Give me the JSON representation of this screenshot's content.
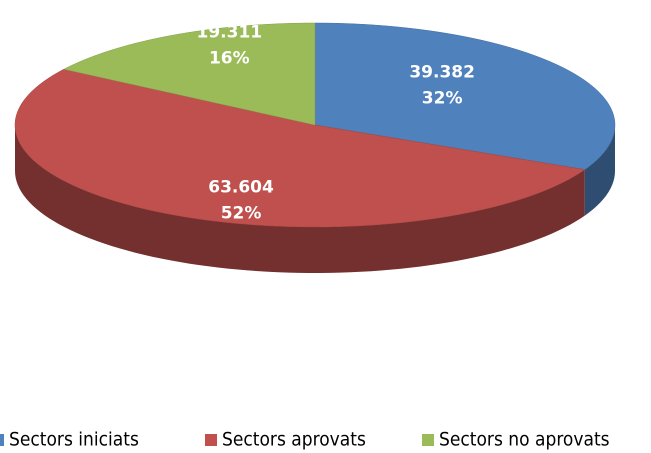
{
  "chart_data": {
    "type": "pie",
    "categories": [
      "Sectors iniciats",
      "Sectors aprovats",
      "Sectors no aprovats"
    ],
    "values": [
      39382,
      63604,
      19311
    ],
    "value_labels": [
      "39.382",
      "63.604",
      "19.311"
    ],
    "percents": [
      32,
      52,
      16
    ],
    "percent_labels": [
      "32%",
      "52%",
      "16%"
    ],
    "colors": [
      "#4f81bd",
      "#c0504d",
      "#9bbb59"
    ],
    "legend": "bottom"
  }
}
